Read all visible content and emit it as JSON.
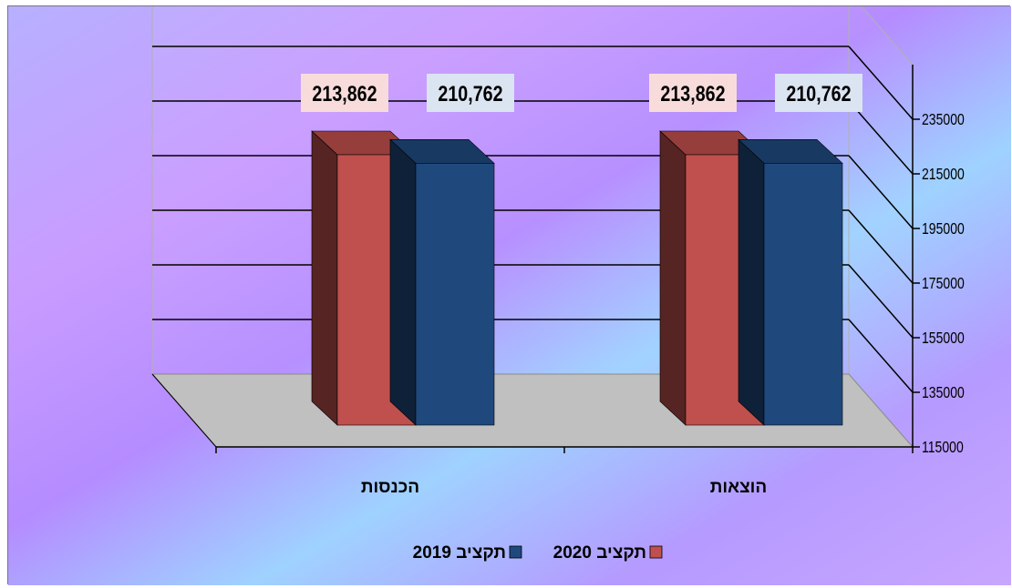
{
  "chart_data": {
    "type": "bar",
    "categories": [
      "הכנסות",
      "הוצאות"
    ],
    "series": [
      {
        "name": "תקציב 2020",
        "values": [
          213862,
          213862
        ],
        "color": "#C0504D"
      },
      {
        "name": "תקציב 2019",
        "values": [
          210762,
          210762
        ],
        "color": "#1F497D"
      }
    ],
    "data_labels": [
      [
        "213,862",
        "213,862"
      ],
      [
        "210,762",
        "210,762"
      ]
    ],
    "y_ticks": [
      "235000",
      "215000",
      "195000",
      "175000",
      "155000",
      "135000",
      "115000"
    ],
    "ylim": [
      115000,
      235000
    ],
    "legend_placement": "bottom",
    "grid": true,
    "background_colors": [
      "#a9c4ff",
      "#c79bff",
      "#9fd0ff"
    ]
  }
}
